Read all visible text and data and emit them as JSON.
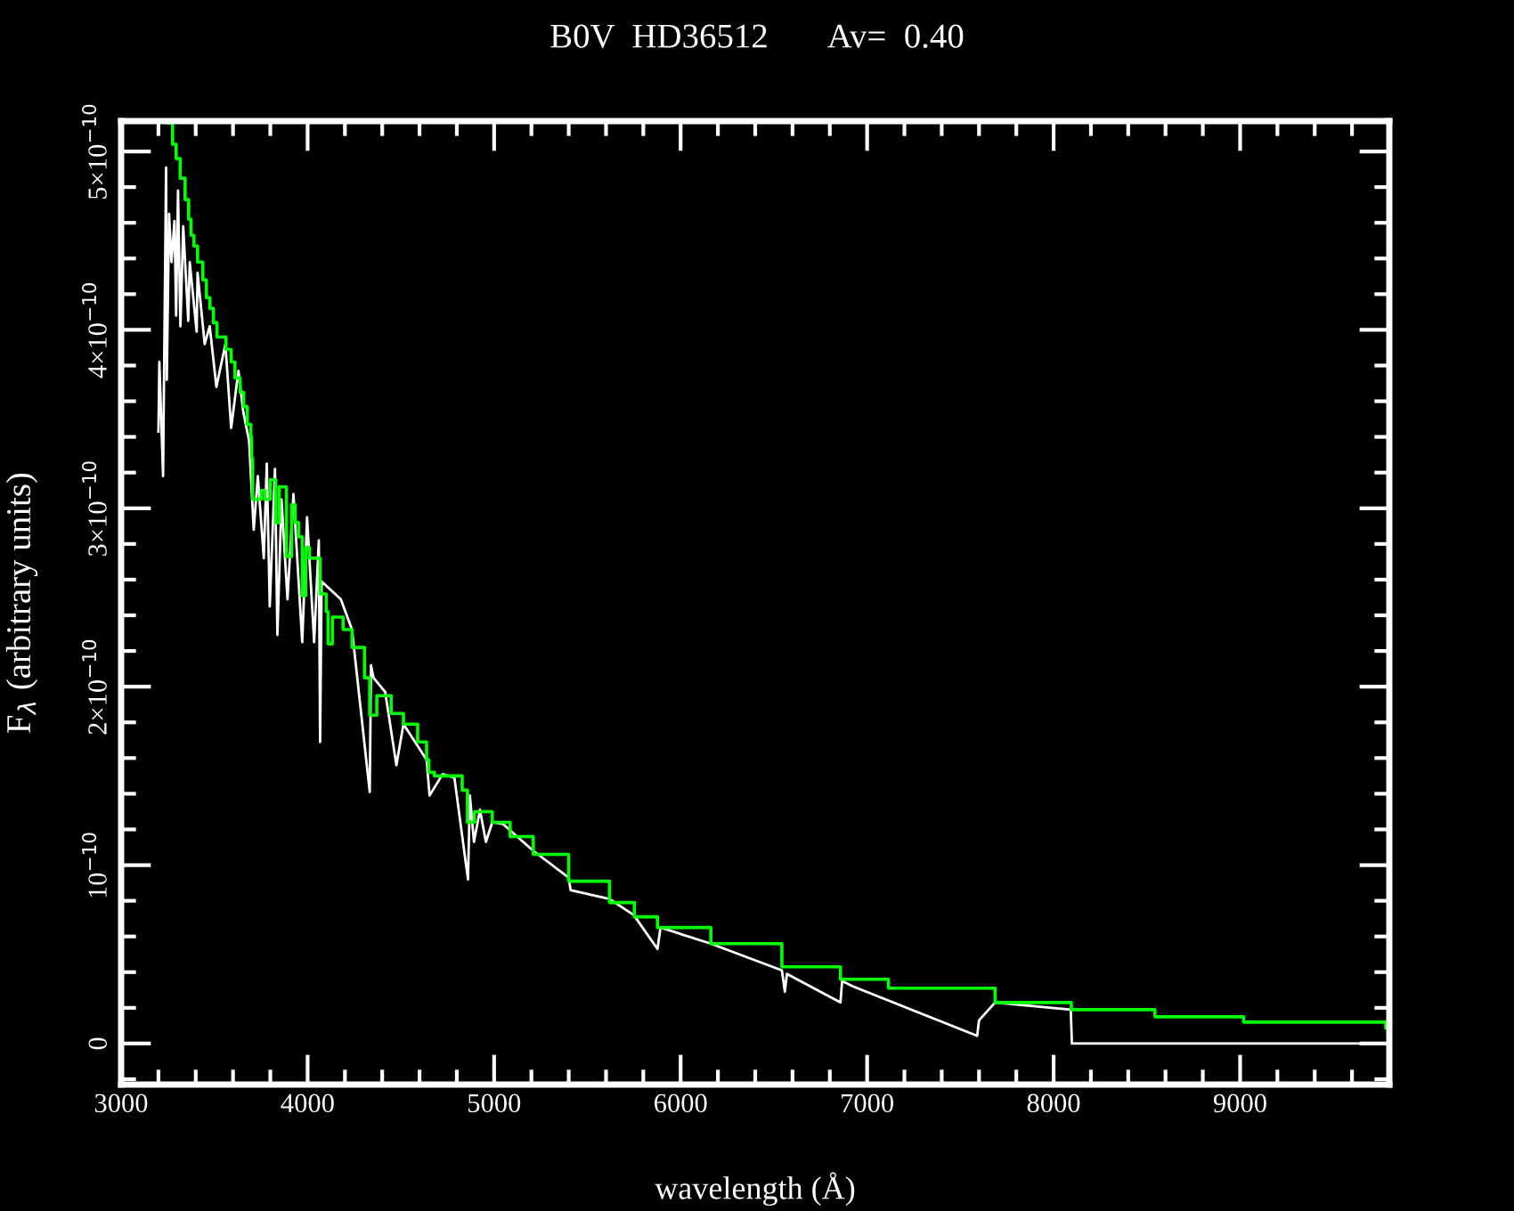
{
  "chart_data": {
    "type": "line",
    "title": "B0V  HD36512       Av=  0.40",
    "xlabel": "wavelength (Å)",
    "ylabel": "F$_{λ}$ (arbitrary units)",
    "xlim": [
      3000,
      9800
    ],
    "ylim": [
      -2.3e-11,
      5.17e-10
    ],
    "xticks": [
      3000,
      4000,
      5000,
      6000,
      7000,
      8000,
      9000
    ],
    "yticks": [
      {
        "value": 0,
        "label": "0"
      },
      {
        "value": 1e-10,
        "label": "10$^{−10}$"
      },
      {
        "value": 2e-10,
        "label": "2×10$^{−10}$"
      },
      {
        "value": 3e-10,
        "label": "3×10$^{−10}$"
      },
      {
        "value": 4e-10,
        "label": "4×10$^{−10}$"
      },
      {
        "value": 5e-10,
        "label": "5×10$^{−10}$"
      }
    ],
    "grid": false,
    "marker": "none",
    "line_style": "solid",
    "series": [
      {
        "color": "#ffffff",
        "x": [
          3200,
          3205,
          3225,
          3241,
          3245,
          3257,
          3270,
          3286,
          3295,
          3305,
          3318,
          3333,
          3360,
          3368,
          3405,
          3410,
          3448,
          3475,
          3511,
          3559,
          3590,
          3629,
          3655,
          3686,
          3711,
          3733,
          3765,
          3781,
          3797,
          3825,
          3838,
          3860,
          3892,
          3924,
          3971,
          3997,
          4035,
          4060,
          4067,
          4075,
          4178,
          4238,
          4333,
          4340,
          4353,
          4416,
          4476,
          4514,
          4638,
          4654,
          4724,
          4787,
          4860,
          4870,
          4892,
          4924,
          4956,
          4990,
          5048,
          5210,
          5400,
          5410,
          5619,
          5749,
          5876,
          5892,
          6162,
          6543,
          6559,
          6570,
          6857,
          6866,
          6924,
          7590,
          7600,
          7686,
          8092,
          8098,
          9780
        ],
        "values": [
          3.43e-10,
          3.82e-10,
          3.18e-10,
          4.91e-10,
          3.72e-10,
          4.65e-10,
          4.38e-10,
          4.61e-10,
          4.08e-10,
          4.78e-10,
          4.02e-10,
          4.58e-10,
          4.05e-10,
          4.38e-10,
          3.99e-10,
          4.32e-10,
          3.92e-10,
          4.02e-10,
          3.68e-10,
          3.92e-10,
          3.45e-10,
          3.77e-10,
          3.54e-10,
          3.38e-10,
          2.88e-10,
          3.18e-10,
          2.72e-10,
          3.25e-10,
          2.45e-10,
          3.22e-10,
          2.29e-10,
          3.05e-10,
          2.49e-10,
          3.08e-10,
          2.25e-10,
          2.95e-10,
          2.25e-10,
          2.82e-10,
          1.69e-10,
          2.59e-10,
          2.49e-10,
          2.32e-10,
          1.41e-10,
          2.12e-10,
          2.05e-10,
          1.97e-10,
          1.56e-10,
          1.79e-10,
          1.59e-10,
          1.39e-10,
          1.51e-10,
          1.49e-10,
          9.2e-11,
          1.39e-10,
          1.13e-10,
          1.31e-10,
          1.13e-10,
          1.24e-10,
          1.23e-10,
          1.08e-10,
          9.3e-11,
          8.6e-11,
          8.1e-11,
          7.2e-11,
          5.3e-11,
          6.5e-11,
          5.6e-11,
          4.1e-11,
          2.9e-11,
          3.9e-11,
          2.3e-11,
          3.5e-11,
          3.2e-11,
          4.3e-12,
          1.3e-11,
          2.3e-11,
          1.9e-11,
          0,
          0
        ]
      },
      {
        "type": "step",
        "color": "#00ff00",
        "x": [
          3250,
          3276,
          3295,
          3317,
          3343,
          3362,
          3375,
          3390,
          3410,
          3438,
          3457,
          3476,
          3495,
          3514,
          3562,
          3590,
          3610,
          3638,
          3657,
          3676,
          3695,
          3700,
          3705,
          3752,
          3771,
          3800,
          3829,
          3848,
          3886,
          3914,
          3933,
          3952,
          3971,
          3990,
          4010,
          4067,
          4100,
          4110,
          4133,
          4190,
          4238,
          4305,
          4333,
          4371,
          4448,
          4514,
          4590,
          4638,
          4650,
          4680,
          4829,
          4857,
          4895,
          4990,
          5086,
          5210,
          5400,
          5619,
          5752,
          5876,
          6162,
          6543,
          6857,
          7114,
          7686,
          8095,
          8543,
          9019,
          9781
        ],
        "values": [
          5.16e-10,
          5.04e-10,
          4.96e-10,
          4.85e-10,
          4.73e-10,
          4.62e-10,
          4.53e-10,
          4.47e-10,
          4.38e-10,
          4.28e-10,
          4.18e-10,
          4.12e-10,
          4.04e-10,
          3.96e-10,
          3.89e-10,
          3.82e-10,
          3.73e-10,
          3.65e-10,
          3.57e-10,
          3.47e-10,
          3.4e-10,
          3.28e-10,
          3.05e-10,
          3.1e-10,
          3.05e-10,
          3.16e-10,
          2.92e-10,
          3.12e-10,
          2.73e-10,
          3.02e-10,
          2.92e-10,
          2.84e-10,
          2.51e-10,
          2.78e-10,
          2.72e-10,
          2.52e-10,
          2.42e-10,
          2.24e-10,
          2.39e-10,
          2.32e-10,
          2.22e-10,
          2.05e-10,
          1.84e-10,
          1.95e-10,
          1.85e-10,
          1.79e-10,
          1.69e-10,
          1.59e-10,
          1.52e-10,
          1.5e-10,
          1.42e-10,
          1.24e-10,
          1.3e-10,
          1.24e-10,
          1.16e-10,
          1.06e-10,
          9.1e-11,
          7.9e-11,
          7.1e-11,
          6.5e-11,
          5.6e-11,
          4.3e-11,
          3.6e-11,
          3.1e-11,
          2.3e-11,
          1.9e-11,
          1.5e-11,
          1.2e-11,
          8.7e-12
        ]
      }
    ]
  }
}
